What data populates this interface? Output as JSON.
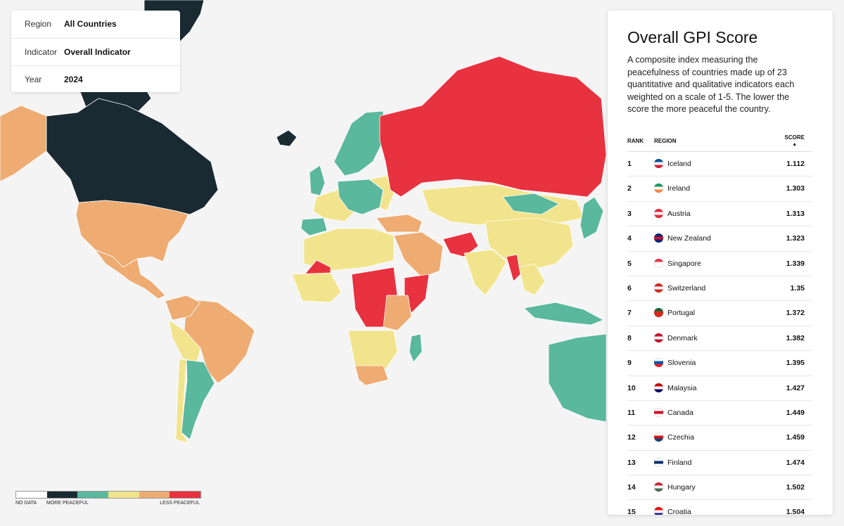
{
  "filters": [
    {
      "label": "Region",
      "value": "All Countries"
    },
    {
      "label": "Indicator",
      "value": "Overall Indicator"
    },
    {
      "label": "Year",
      "value": "2024"
    }
  ],
  "panel": {
    "title": "Overall GPI Score",
    "description": "A composite index measuring the peacefulness of countries made up of 23 quantitative and qualitative indicators each weighted on a scale of 1-5. The lower the score the more peaceful the country.",
    "columns": {
      "rank": "RANK",
      "region": "REGION",
      "score": "SCORE",
      "sort_indicator": "▲"
    },
    "rows": [
      {
        "rank": "1",
        "region": "Iceland",
        "score": "1.112",
        "flag_colors": [
          "#02529c",
          "#ffffff",
          "#dc1e35"
        ]
      },
      {
        "rank": "2",
        "region": "Ireland",
        "score": "1.303",
        "flag_colors": [
          "#169b62",
          "#ffffff",
          "#ff883e"
        ]
      },
      {
        "rank": "3",
        "region": "Austria",
        "score": "1.313",
        "flag_colors": [
          "#ed2939",
          "#ffffff",
          "#ed2939"
        ]
      },
      {
        "rank": "4",
        "region": "New Zealand",
        "score": "1.323",
        "flag_colors": [
          "#00247d",
          "#cc142b",
          "#00247d"
        ]
      },
      {
        "rank": "5",
        "region": "Singapore",
        "score": "1.339",
        "flag_colors": [
          "#ef3340",
          "#ffffff",
          "#ffffff"
        ]
      },
      {
        "rank": "6",
        "region": "Switzerland",
        "score": "1.35",
        "flag_colors": [
          "#da291c",
          "#ffffff",
          "#da291c"
        ]
      },
      {
        "rank": "7",
        "region": "Portugal",
        "score": "1.372",
        "flag_colors": [
          "#046a38",
          "#da291c",
          "#da291c"
        ]
      },
      {
        "rank": "8",
        "region": "Denmark",
        "score": "1.382",
        "flag_colors": [
          "#c8102e",
          "#ffffff",
          "#c8102e"
        ]
      },
      {
        "rank": "9",
        "region": "Slovenia",
        "score": "1.395",
        "flag_colors": [
          "#ffffff",
          "#0057b8",
          "#ed1c24"
        ]
      },
      {
        "rank": "10",
        "region": "Malaysia",
        "score": "1.427",
        "flag_colors": [
          "#cc0001",
          "#ffffff",
          "#010066"
        ]
      },
      {
        "rank": "11",
        "region": "Canada",
        "score": "1.449",
        "flag_colors": [
          "#ffffff",
          "#d80621",
          "#ffffff"
        ]
      },
      {
        "rank": "12",
        "region": "Czechia",
        "score": "1.459",
        "flag_colors": [
          "#ffffff",
          "#d7141a",
          "#11457e"
        ]
      },
      {
        "rank": "13",
        "region": "Finland",
        "score": "1.474",
        "flag_colors": [
          "#ffffff",
          "#002f6c",
          "#ffffff"
        ]
      },
      {
        "rank": "14",
        "region": "Hungary",
        "score": "1.502",
        "flag_colors": [
          "#ce2939",
          "#ffffff",
          "#477050"
        ]
      },
      {
        "rank": "15",
        "region": "Croatia",
        "score": "1.504",
        "flag_colors": [
          "#ff0000",
          "#ffffff",
          "#171796"
        ]
      }
    ]
  },
  "legend": {
    "no_data_label": "NO DATA",
    "more_label": "MORE PEACEFUL",
    "less_label": "LESS PEACEFUL",
    "colors": [
      "#ffffff",
      "#1a2a33",
      "#5ab89c",
      "#f2e48c",
      "#eeab72",
      "#e8323f"
    ]
  },
  "map_palette": {
    "very_high": "#1a2a33",
    "high": "#5ab89c",
    "medium": "#f2e48c",
    "low": "#eeab72",
    "very_low": "#e8323f",
    "no_data": "#ffffff"
  }
}
